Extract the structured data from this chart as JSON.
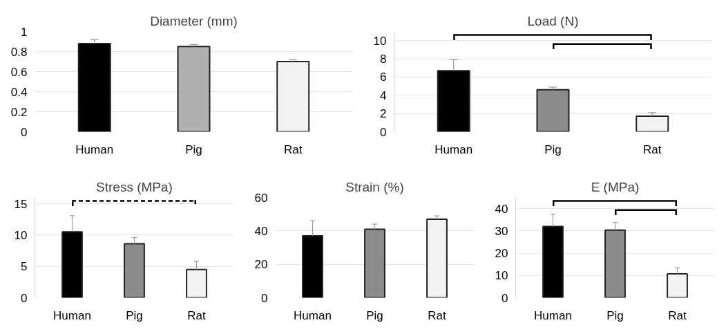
{
  "chart_data": [
    {
      "type": "bar",
      "title": "Diameter (mm)",
      "categories": [
        "Human",
        "Pig",
        "Rat"
      ],
      "values": [
        0.88,
        0.85,
        0.7
      ],
      "colors": [
        "#000000",
        "#b0b0b0",
        "#f2f2f2"
      ],
      "errors": [
        [
          0.88,
          0.92
        ],
        [
          0.85,
          0.87
        ],
        [
          0.7,
          0.72
        ]
      ],
      "ylim": [
        0,
        1
      ],
      "yticks": [
        0,
        0.2,
        0.4,
        0.6,
        0.8,
        1
      ],
      "grid": "y"
    },
    {
      "type": "bar",
      "title": "Load (N)",
      "categories": [
        "Human",
        "Pig",
        "Rat"
      ],
      "values": [
        6.7,
        4.6,
        1.7
      ],
      "colors": [
        "#000000",
        "#8c8c8c",
        "#f2f2f2"
      ],
      "errors": [
        [
          6.7,
          7.9
        ],
        [
          4.6,
          4.9
        ],
        [
          1.7,
          2.1
        ]
      ],
      "ylim": [
        0,
        11
      ],
      "yticks": [
        0,
        2,
        4,
        6,
        8,
        10
      ],
      "grid": "y"
    },
    {
      "type": "bar",
      "title": "Stress (MPa)",
      "categories": [
        "Human",
        "Pig",
        "Rat"
      ],
      "values": [
        10.5,
        8.6,
        4.5
      ],
      "colors": [
        "#000000",
        "#8c8c8c",
        "#f2f2f2"
      ],
      "errors": [
        [
          10.5,
          13.1
        ],
        [
          8.6,
          9.6
        ],
        [
          4.5,
          5.8
        ]
      ],
      "ylim": [
        0,
        16
      ],
      "yticks": [
        0,
        5,
        10,
        15
      ],
      "grid": "y"
    },
    {
      "type": "bar",
      "title": "Strain (%)",
      "categories": [
        "Human",
        "Pig",
        "Rat"
      ],
      "values": [
        37,
        41,
        47
      ],
      "colors": [
        "#000000",
        "#8c8c8c",
        "#f2f2f2"
      ],
      "errors": [
        [
          37,
          46
        ],
        [
          41,
          44
        ],
        [
          47,
          49
        ]
      ],
      "ylim": [
        0,
        60
      ],
      "yticks": [
        0,
        20,
        40,
        60
      ],
      "grid": "y"
    },
    {
      "type": "bar",
      "title": "E (MPa)",
      "categories": [
        "Human",
        "Pig",
        "Rat"
      ],
      "values": [
        32,
        30.3,
        10.7
      ],
      "colors": [
        "#000000",
        "#8c8c8c",
        "#f2f2f2"
      ],
      "errors": [
        [
          32,
          37.5
        ],
        [
          30.3,
          33.8
        ],
        [
          10.7,
          13.4
        ]
      ],
      "ylim": [
        0,
        45
      ],
      "yticks": [
        0,
        10,
        20,
        30,
        40
      ],
      "grid": "y"
    }
  ]
}
